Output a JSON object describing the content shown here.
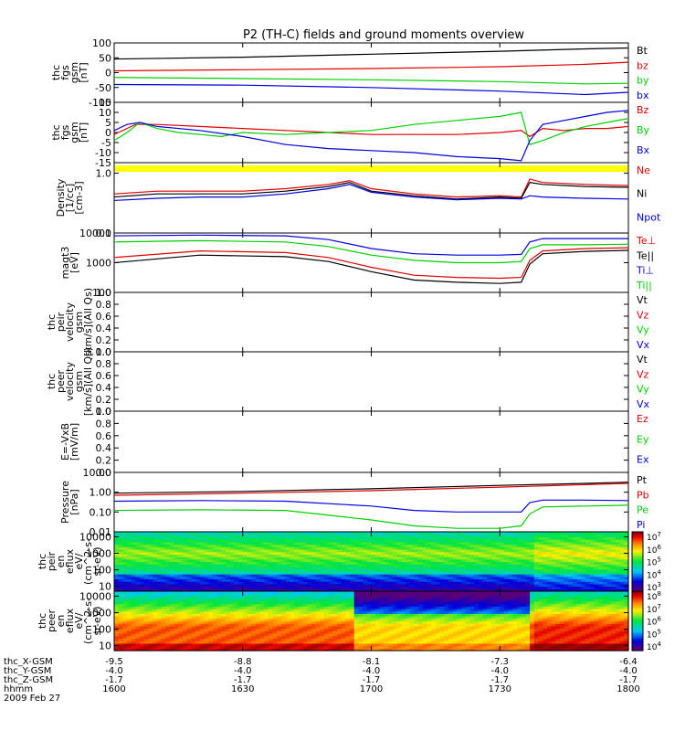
{
  "title": "P2 (TH-C) fields and ground moments overview",
  "colors": {
    "black": "#000000",
    "red": "#e00000",
    "green": "#00d000",
    "blue": "#0000e0",
    "yellow": "#ffff00"
  },
  "chart_data": [
    {
      "type": "line",
      "ylabel": [
        "thc",
        "fgs",
        "gsm",
        "[nT]"
      ],
      "yticks": [
        "100",
        "50",
        "0",
        "-50",
        "-100"
      ],
      "ylim": [
        -100,
        100
      ],
      "log": false,
      "legend": [
        {
          "name": "Bt",
          "color": "black"
        },
        {
          "name": "bz",
          "color": "red"
        },
        {
          "name": "by",
          "color": "green"
        },
        {
          "name": "bx",
          "color": "blue"
        }
      ],
      "series": [
        {
          "color": "black",
          "x": [
            0,
            30,
            60,
            90,
            110,
            120
          ],
          "y": [
            46,
            52,
            62,
            72,
            80,
            83
          ]
        },
        {
          "color": "red",
          "x": [
            0,
            30,
            60,
            90,
            110,
            120
          ],
          "y": [
            6,
            10,
            14,
            20,
            28,
            35
          ]
        },
        {
          "color": "green",
          "x": [
            0,
            30,
            60,
            90,
            110,
            120
          ],
          "y": [
            -16,
            -20,
            -24,
            -30,
            -38,
            -36
          ]
        },
        {
          "color": "blue",
          "x": [
            0,
            30,
            60,
            90,
            110,
            120
          ],
          "y": [
            -40,
            -42,
            -50,
            -62,
            -74,
            -66
          ]
        }
      ]
    },
    {
      "type": "line",
      "ylabel": [
        "thc",
        "fgs",
        "gsm",
        "[nT]"
      ],
      "yticks": [
        "15",
        "10",
        "5",
        "0",
        "-5",
        "-10",
        "-15"
      ],
      "ylim": [
        -15,
        15
      ],
      "log": false,
      "legend": [
        {
          "name": "Bz",
          "color": "red"
        },
        {
          "name": "By",
          "color": "green"
        },
        {
          "name": "Bx",
          "color": "blue"
        }
      ],
      "series": [
        {
          "color": "red",
          "x": [
            0,
            5,
            10,
            20,
            30,
            40,
            50,
            60,
            70,
            80,
            90,
            95,
            97,
            100,
            105,
            110,
            115,
            120
          ],
          "y": [
            -1,
            4,
            4,
            3,
            2,
            1,
            0,
            -1,
            -1,
            -1,
            0,
            1,
            -2,
            2,
            1,
            2,
            2,
            3
          ]
        },
        {
          "color": "green",
          "x": [
            0,
            3,
            6,
            10,
            15,
            20,
            25,
            30,
            40,
            50,
            60,
            70,
            80,
            90,
            95,
            97,
            100,
            105,
            110,
            115,
            120
          ],
          "y": [
            -4,
            0,
            5,
            2,
            0,
            -1,
            -2,
            0,
            -1,
            0,
            1,
            4,
            6,
            8,
            10,
            -6,
            -4,
            0,
            3,
            5,
            7
          ]
        },
        {
          "color": "blue",
          "x": [
            0,
            3,
            6,
            10,
            20,
            30,
            40,
            50,
            60,
            70,
            80,
            90,
            95,
            97,
            100,
            105,
            110,
            115,
            120
          ],
          "y": [
            1,
            4,
            5,
            3,
            1,
            -2,
            -6,
            -8,
            -9,
            -10,
            -12,
            -13,
            -14,
            -4,
            4,
            6,
            8,
            10,
            11
          ]
        }
      ]
    },
    {
      "type": "line",
      "ylabel": [
        "Density",
        "[1/cc]",
        "[cm-3]"
      ],
      "yticks": [
        "1.0",
        "0.1"
      ],
      "ylim": [
        0.1,
        1.5
      ],
      "log": true,
      "legend": [
        {
          "name": "Ne",
          "color": "red"
        },
        {
          "name": "Ni",
          "color": "black"
        },
        {
          "name": "Npot",
          "color": "blue"
        }
      ],
      "series": [
        {
          "color": "red",
          "x": [
            0,
            10,
            20,
            30,
            40,
            50,
            55,
            60,
            70,
            80,
            90,
            95,
            97,
            100,
            110,
            120
          ],
          "y": [
            0.45,
            0.5,
            0.5,
            0.5,
            0.55,
            0.65,
            0.75,
            0.55,
            0.45,
            0.4,
            0.42,
            0.4,
            0.8,
            0.7,
            0.65,
            0.62
          ]
        },
        {
          "color": "black",
          "x": [
            0,
            10,
            20,
            30,
            40,
            50,
            55,
            60,
            70,
            80,
            90,
            95,
            97,
            100,
            110,
            120
          ],
          "y": [
            0.4,
            0.45,
            0.45,
            0.45,
            0.5,
            0.6,
            0.7,
            0.5,
            0.42,
            0.37,
            0.4,
            0.38,
            0.7,
            0.65,
            0.6,
            0.58
          ]
        },
        {
          "color": "blue",
          "x": [
            0,
            10,
            20,
            30,
            40,
            50,
            55,
            60,
            70,
            80,
            90,
            95,
            97,
            100,
            110,
            120
          ],
          "y": [
            0.35,
            0.38,
            0.4,
            0.4,
            0.45,
            0.55,
            0.65,
            0.48,
            0.4,
            0.36,
            0.38,
            0.37,
            0.42,
            0.4,
            0.38,
            0.37
          ]
        }
      ]
    },
    {
      "type": "line",
      "ylabel": [
        "magt3",
        "[eV]"
      ],
      "yticks": [
        "10000",
        "1000",
        "100"
      ],
      "ylim": [
        100,
        10000
      ],
      "log": true,
      "legend": [
        {
          "name": "Te⊥",
          "color": "red"
        },
        {
          "name": "Te||",
          "color": "black"
        },
        {
          "name": "Ti⊥",
          "color": "blue"
        },
        {
          "name": "Ti||",
          "color": "green"
        }
      ],
      "series": [
        {
          "color": "blue",
          "x": [
            0,
            20,
            40,
            50,
            60,
            70,
            80,
            90,
            95,
            97,
            100,
            110,
            120
          ],
          "y": [
            8000,
            8500,
            8000,
            6000,
            3000,
            2000,
            1800,
            1800,
            1900,
            5000,
            6500,
            6500,
            6500
          ]
        },
        {
          "color": "green",
          "x": [
            0,
            20,
            40,
            50,
            60,
            70,
            80,
            90,
            95,
            97,
            100,
            110,
            120
          ],
          "y": [
            5000,
            5500,
            5000,
            3500,
            1800,
            1200,
            1000,
            1000,
            1100,
            3000,
            4000,
            4000,
            4200
          ]
        },
        {
          "color": "red",
          "x": [
            0,
            20,
            40,
            50,
            60,
            70,
            80,
            90,
            95,
            97,
            100,
            110,
            120
          ],
          "y": [
            1500,
            2500,
            2200,
            1500,
            700,
            380,
            320,
            300,
            320,
            1200,
            2500,
            3000,
            3200
          ]
        },
        {
          "color": "black",
          "x": [
            0,
            20,
            40,
            50,
            60,
            70,
            80,
            90,
            95,
            97,
            100,
            110,
            120
          ],
          "y": [
            1000,
            1800,
            1600,
            1100,
            500,
            260,
            220,
            200,
            220,
            900,
            2000,
            2400,
            2600
          ]
        }
      ]
    },
    {
      "type": "line",
      "ylabel": [
        "thc",
        "peir",
        "velocity",
        "gsm",
        "[km/s](All Qs)"
      ],
      "yticks": [
        "1.0",
        "0.8",
        "0.6",
        "0.4",
        "0.2",
        "0.0"
      ],
      "ylim": [
        0,
        1
      ],
      "log": false,
      "legend": [
        {
          "name": "Vt",
          "color": "black"
        },
        {
          "name": "Vz",
          "color": "red"
        },
        {
          "name": "Vy",
          "color": "green"
        },
        {
          "name": "Vx",
          "color": "blue"
        }
      ],
      "series": []
    },
    {
      "type": "line",
      "ylabel": [
        "thc",
        "peer",
        "velocity",
        "gsm",
        "[km/s](All Qs)"
      ],
      "yticks": [
        "1.0",
        "0.8",
        "0.6",
        "0.4",
        "0.2",
        "0.0"
      ],
      "ylim": [
        0,
        1
      ],
      "log": false,
      "legend": [
        {
          "name": "Vt",
          "color": "black"
        },
        {
          "name": "Vz",
          "color": "red"
        },
        {
          "name": "Vy",
          "color": "green"
        },
        {
          "name": "Vx",
          "color": "blue"
        }
      ],
      "series": []
    },
    {
      "type": "line",
      "ylabel": [
        "E=-VxB",
        "[mV/m]"
      ],
      "yticks": [
        "1.0",
        "0.8",
        "0.6",
        "0.4",
        "0.2",
        "0.0"
      ],
      "ylim": [
        0,
        1
      ],
      "log": false,
      "legend": [
        {
          "name": "Ez",
          "color": "red"
        },
        {
          "name": "Ey",
          "color": "green"
        },
        {
          "name": "Ex",
          "color": "blue"
        }
      ],
      "series": []
    },
    {
      "type": "line",
      "ylabel": [
        "Pressure",
        "[nPa]"
      ],
      "yticks": [
        "10.00",
        "1.00",
        "0.10",
        "0.01"
      ],
      "ylim": [
        0.01,
        10
      ],
      "log": true,
      "legend": [
        {
          "name": "Pt",
          "color": "black"
        },
        {
          "name": "Pb",
          "color": "red"
        },
        {
          "name": "Pe",
          "color": "green"
        },
        {
          "name": "Pi",
          "color": "blue"
        }
      ],
      "series": [
        {
          "color": "black",
          "x": [
            0,
            30,
            60,
            90,
            110,
            120
          ],
          "y": [
            0.9,
            1.1,
            1.5,
            2.2,
            2.8,
            3.2
          ]
        },
        {
          "color": "red",
          "x": [
            0,
            30,
            60,
            90,
            110,
            120
          ],
          "y": [
            0.7,
            0.9,
            1.2,
            1.8,
            2.4,
            2.8
          ]
        },
        {
          "color": "blue",
          "x": [
            0,
            20,
            40,
            60,
            70,
            80,
            90,
            95,
            97,
            100,
            110,
            120
          ],
          "y": [
            0.35,
            0.38,
            0.35,
            0.2,
            0.12,
            0.1,
            0.1,
            0.1,
            0.3,
            0.4,
            0.4,
            0.38
          ]
        },
        {
          "color": "green",
          "x": [
            0,
            20,
            40,
            60,
            70,
            80,
            90,
            95,
            97,
            100,
            110,
            120
          ],
          "y": [
            0.12,
            0.13,
            0.12,
            0.04,
            0.02,
            0.015,
            0.015,
            0.02,
            0.08,
            0.18,
            0.2,
            0.22
          ]
        }
      ]
    },
    {
      "type": "heatmap",
      "ylabel": [
        "thc",
        "peir",
        "en",
        "eflux",
        "eV/",
        "(cm^2-s-",
        "sr-eV)"
      ],
      "yticks": [
        "10000",
        "1000",
        "100",
        "10"
      ],
      "ylim": [
        5,
        20000
      ],
      "log": true,
      "colorbar": [
        "10^7",
        "10^6",
        "10^5",
        "10^4",
        "10^3"
      ]
    },
    {
      "type": "heatmap",
      "ylabel": [
        "thc",
        "peer",
        "en",
        "eflux",
        "eV/",
        "(cm^2-s-",
        "sr-eV)"
      ],
      "yticks": [
        "10000",
        "1000",
        "100",
        "10"
      ],
      "ylim": [
        5,
        20000
      ],
      "log": true,
      "colorbar": [
        "10^8",
        "10^7",
        "10^6",
        "10^5",
        "10^4"
      ]
    }
  ],
  "xaxis": {
    "ticks": [
      {
        "x": 0,
        "X": "-9.5",
        "Y": "-4.0",
        "Z": "-1.7",
        "hhmm": "1600"
      },
      {
        "x": 30,
        "X": "-8.8",
        "Y": "-4.0",
        "Z": "-1.7",
        "hhmm": "1630"
      },
      {
        "x": 60,
        "X": "-8.1",
        "Y": "-4.0",
        "Z": "-1.7",
        "hhmm": "1700"
      },
      {
        "x": 90,
        "X": "-7.3",
        "Y": "-4.0",
        "Z": "-1.7",
        "hhmm": "1730"
      },
      {
        "x": 120,
        "X": "-6.4",
        "Y": "-4.0",
        "Z": "-1.7",
        "hhmm": "1800"
      }
    ],
    "row_labels": [
      "thc_X-GSM",
      "thc_Y-GSM",
      "thc_Z-GSM",
      "hhmm"
    ],
    "date": "2009 Feb 27"
  }
}
